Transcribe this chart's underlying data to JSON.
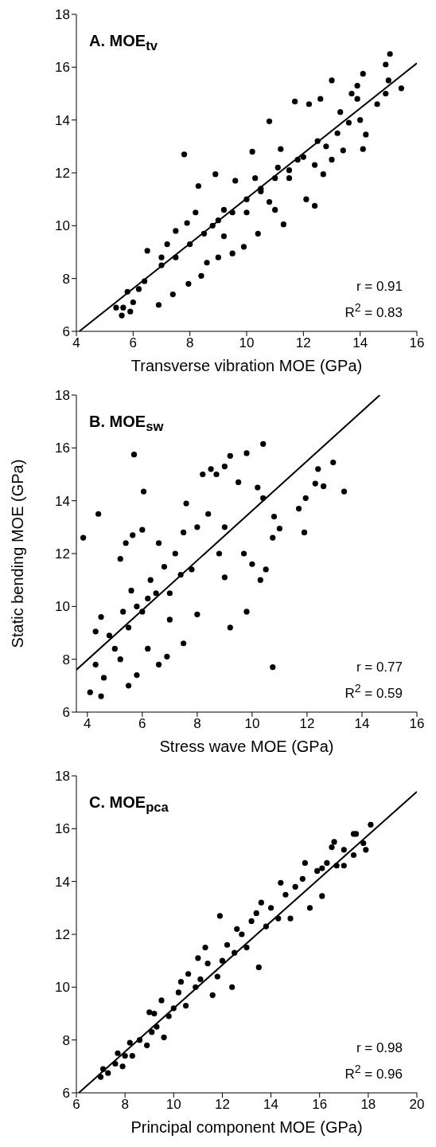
{
  "chart_data": [
    {
      "type": "scatter",
      "title": "A. MOE$_{tv}$",
      "xlabel": "Transverse vibration MOE (GPa)",
      "annotations": [
        "r = 0.91",
        "R$^{2}$ = 0.83"
      ],
      "xlim": [
        4,
        16
      ],
      "xticks": [
        4,
        6,
        8,
        10,
        12,
        14,
        16
      ],
      "ylim": [
        6,
        18
      ],
      "yticks": [
        6,
        8,
        10,
        12,
        14,
        16,
        18
      ],
      "marker": "circle",
      "series": [
        {
          "type": "scatter",
          "color": "#000000",
          "x": [
            5.4,
            5.6,
            5.65,
            5.9,
            6.0,
            5.8,
            6.2,
            6.4,
            6.5,
            6.9,
            7.0,
            7.2,
            7.4,
            7.5,
            7.8,
            7.9,
            7.95,
            8.3,
            8.4,
            8.6,
            8.8,
            8.9,
            9.0,
            9.2,
            9.5,
            9.6,
            9.9,
            10.0,
            10.2,
            10.4,
            10.8,
            10.5,
            11.0,
            11.1,
            11.3,
            11.5,
            11.7,
            11.8,
            12.1,
            12.2,
            12.4,
            12.4,
            12.6,
            12.7,
            12.8,
            13.0,
            13.0,
            13.3,
            13.4,
            13.6,
            13.7,
            13.9,
            13.9,
            14.0,
            14.1,
            14.1,
            14.2,
            14.6,
            14.9,
            14.9,
            15.0,
            15.05,
            15.45,
            7.0,
            7.5,
            8.0,
            8.5,
            9.0,
            9.5,
            10.0,
            10.5,
            11.0,
            11.5,
            12.0,
            12.5,
            8.2,
            9.2,
            10.3,
            10.8,
            11.2,
            13.2
          ],
          "values": [
            6.9,
            6.6,
            6.9,
            6.75,
            7.1,
            7.5,
            7.6,
            7.9,
            9.05,
            7.0,
            8.8,
            9.3,
            7.4,
            9.8,
            12.7,
            10.1,
            7.8,
            11.5,
            8.1,
            8.6,
            10.0,
            11.95,
            8.8,
            10.6,
            8.95,
            11.7,
            9.2,
            10.5,
            12.8,
            9.7,
            13.95,
            11.3,
            10.6,
            12.2,
            10.05,
            11.8,
            14.7,
            12.5,
            11.0,
            14.6,
            10.75,
            12.3,
            14.8,
            11.95,
            13.0,
            15.5,
            12.5,
            14.3,
            12.85,
            13.9,
            15.0,
            15.3,
            14.8,
            14.0,
            12.9,
            15.75,
            13.45,
            14.6,
            16.1,
            15.0,
            15.5,
            16.5,
            15.2,
            8.5,
            8.8,
            9.3,
            9.7,
            10.2,
            10.5,
            11.0,
            11.4,
            11.8,
            12.1,
            12.6,
            13.2,
            10.5,
            9.6,
            11.8,
            10.9,
            12.9,
            13.5
          ]
        },
        {
          "type": "line",
          "color": "#000000",
          "marker": "none",
          "x": [
            4.1,
            16
          ],
          "values": [
            6.0,
            16.15
          ]
        }
      ]
    },
    {
      "type": "scatter",
      "title": "B. MOE$_{sw}$",
      "xlabel": "Stress wave MOE (GPa)",
      "ylabel": "Static bending MOE (GPa)",
      "annotations": [
        "r = 0.77",
        "R$^{2}$ = 0.59"
      ],
      "xlim": [
        3.6,
        16
      ],
      "xticks": [
        4,
        6,
        8,
        10,
        12,
        14,
        16
      ],
      "ylim": [
        6,
        18
      ],
      "yticks": [
        6,
        8,
        10,
        12,
        14,
        16,
        18
      ],
      "marker": "circle",
      "series": [
        {
          "type": "scatter",
          "color": "#000000",
          "x": [
            3.85,
            4.1,
            4.3,
            4.3,
            4.4,
            4.5,
            4.5,
            4.6,
            4.8,
            5.0,
            5.2,
            5.3,
            5.4,
            5.5,
            5.6,
            5.65,
            5.7,
            5.8,
            6.0,
            6.05,
            6.2,
            6.6,
            6.9,
            7.5,
            7.0,
            6.5,
            6.0,
            5.5,
            5.8,
            6.3,
            6.8,
            7.2,
            7.5,
            7.0,
            7.8,
            8.0,
            8.4,
            8.0,
            8.2,
            8.5,
            8.7,
            9.0,
            9.2,
            9.8,
            10.4,
            9.5,
            9.0,
            8.8,
            9.0,
            9.2,
            9.8,
            9.7,
            10.0,
            10.3,
            10.2,
            10.5,
            10.4,
            10.75,
            10.8,
            11.0,
            10.75,
            11.7,
            11.9,
            11.95,
            12.3,
            12.4,
            12.6,
            12.95,
            13.35,
            7.6,
            6.6,
            5.2,
            6.2,
            7.4
          ],
          "values": [
            12.6,
            6.75,
            7.8,
            9.05,
            13.5,
            6.6,
            9.6,
            7.3,
            8.9,
            8.4,
            11.8,
            9.8,
            12.4,
            7.0,
            10.6,
            12.7,
            15.75,
            7.4,
            12.9,
            14.35,
            8.4,
            7.8,
            8.1,
            8.6,
            9.5,
            10.5,
            9.8,
            9.2,
            10.0,
            11.0,
            11.5,
            12.0,
            12.8,
            10.5,
            11.4,
            13.0,
            13.5,
            9.7,
            15.0,
            15.2,
            15.0,
            15.3,
            15.7,
            15.8,
            16.15,
            14.7,
            13.0,
            12.0,
            11.1,
            9.2,
            9.8,
            12.0,
            11.6,
            11.0,
            14.5,
            11.4,
            14.1,
            12.6,
            13.4,
            12.95,
            7.7,
            13.7,
            12.8,
            14.1,
            14.65,
            15.2,
            14.55,
            15.45,
            14.35,
            13.9,
            12.4,
            8.0,
            10.3,
            11.2
          ]
        },
        {
          "type": "line",
          "color": "#000000",
          "marker": "none",
          "x": [
            3.6,
            14.65
          ],
          "values": [
            7.6,
            18.0
          ]
        }
      ]
    },
    {
      "type": "scatter",
      "title": "C. MOE$_{pca}$",
      "xlabel": "Principal component MOE (GPa)",
      "annotations": [
        "r = 0.98",
        "R$^{2}$ = 0.96"
      ],
      "xlim": [
        6,
        20
      ],
      "xticks": [
        6,
        8,
        10,
        12,
        14,
        16,
        18,
        20
      ],
      "ylim": [
        6,
        18
      ],
      "yticks": [
        6,
        8,
        10,
        12,
        14,
        16,
        18
      ],
      "marker": "circle",
      "series": [
        {
          "type": "scatter",
          "color": "#000000",
          "x": [
            7.0,
            7.1,
            7.3,
            7.6,
            7.9,
            7.7,
            8.0,
            8.3,
            8.2,
            8.6,
            8.9,
            9.1,
            9.0,
            9.3,
            9.6,
            9.8,
            10.0,
            9.5,
            10.2,
            10.5,
            10.6,
            10.9,
            11.1,
            11.0,
            11.4,
            11.6,
            11.9,
            11.8,
            12.0,
            12.2,
            12.4,
            12.5,
            12.8,
            13.0,
            13.2,
            13.5,
            13.4,
            13.8,
            14.0,
            14.4,
            14.3,
            14.6,
            14.8,
            15.0,
            15.3,
            15.4,
            15.6,
            15.9,
            16.1,
            16.1,
            16.3,
            16.5,
            16.6,
            16.7,
            17.0,
            17.0,
            17.4,
            17.4,
            17.5,
            17.8,
            17.9,
            18.1,
            12.6,
            11.3,
            10.3,
            9.2,
            13.6
          ],
          "values": [
            6.6,
            6.9,
            6.75,
            7.1,
            7.0,
            7.5,
            7.4,
            7.4,
            7.9,
            8.0,
            7.8,
            8.3,
            9.05,
            8.5,
            8.1,
            8.9,
            9.2,
            9.5,
            9.8,
            9.3,
            10.5,
            10.0,
            10.3,
            11.1,
            10.9,
            9.7,
            12.7,
            10.4,
            11.0,
            11.6,
            10.0,
            11.3,
            12.0,
            11.5,
            12.5,
            10.75,
            12.8,
            12.3,
            13.0,
            13.95,
            12.6,
            13.5,
            12.6,
            13.8,
            14.1,
            14.7,
            13.0,
            14.4,
            14.5,
            13.45,
            14.7,
            15.3,
            15.5,
            14.6,
            15.2,
            14.6,
            15.0,
            15.8,
            15.8,
            15.45,
            15.2,
            16.15,
            12.2,
            11.5,
            10.2,
            9.0,
            13.2
          ]
        },
        {
          "type": "line",
          "color": "#000000",
          "marker": "none",
          "x": [
            6.1,
            20
          ],
          "values": [
            6.0,
            17.4
          ]
        }
      ]
    }
  ]
}
